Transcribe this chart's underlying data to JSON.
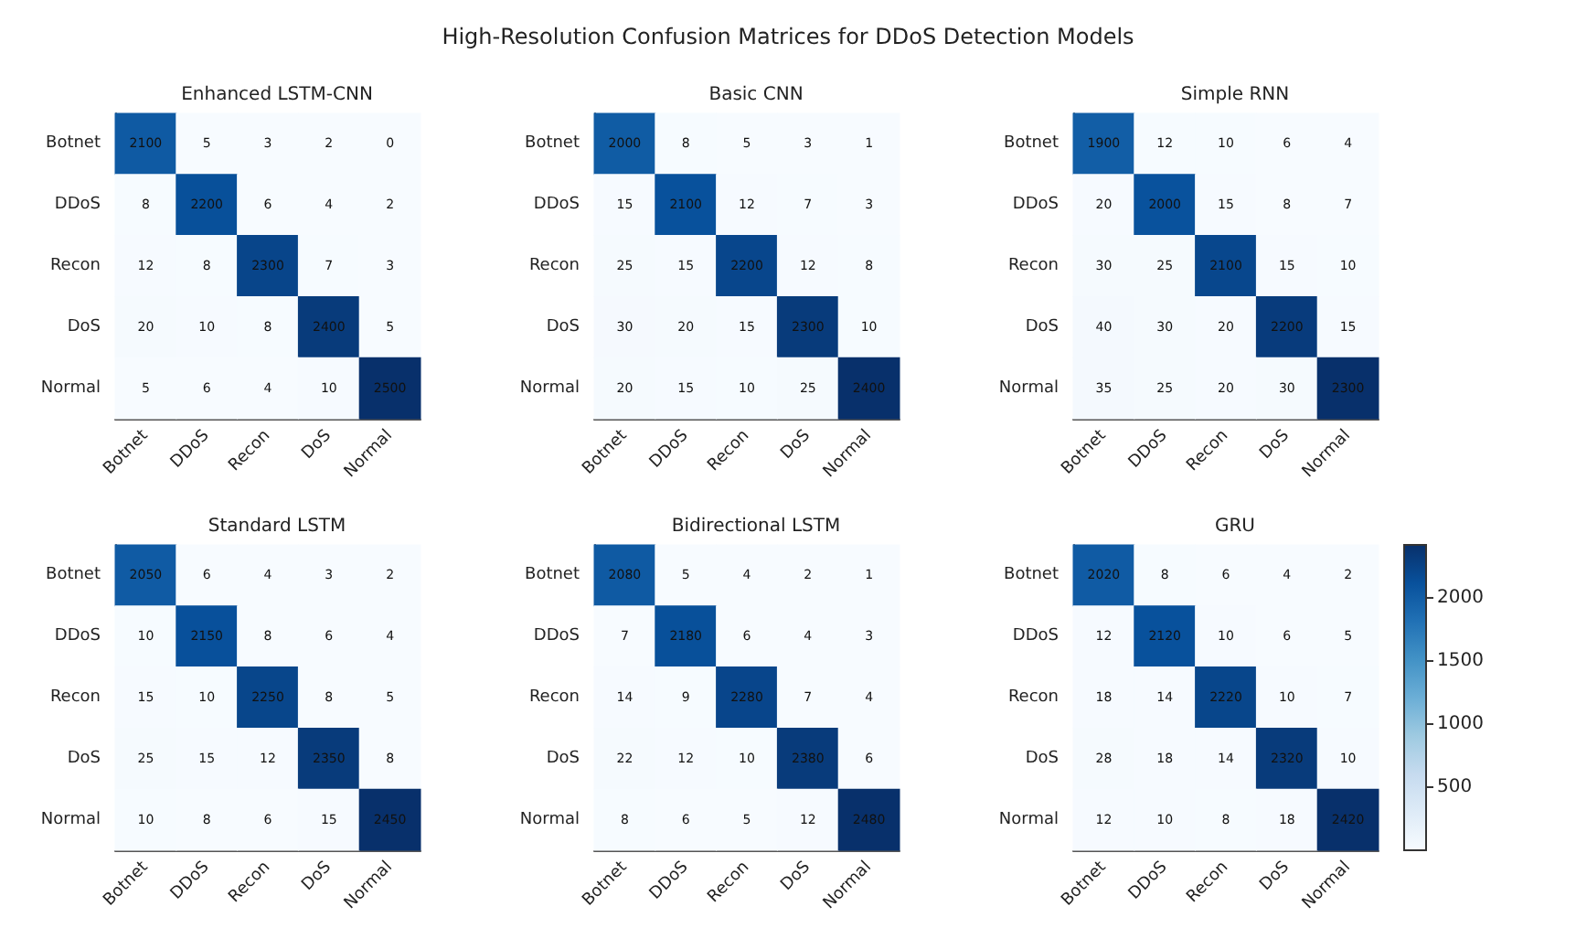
{
  "chart_data": [
    {
      "type": "heatmap",
      "title": "Enhanced LSTM-CNN",
      "annotations": [
        "High-Resolution Confusion Matrices for DDoS Detection Models"
      ],
      "categories": [
        "Botnet",
        "DDoS",
        "Recon",
        "DoS",
        "Normal"
      ],
      "y_categories": [
        "Botnet",
        "DDoS",
        "Recon",
        "DoS",
        "Normal"
      ],
      "data_labels": true,
      "cells": [
        [
          2100,
          5,
          3,
          2,
          0
        ],
        [
          8,
          2200,
          6,
          4,
          2
        ],
        [
          12,
          8,
          2300,
          7,
          3
        ],
        [
          20,
          10,
          8,
          2400,
          5
        ],
        [
          5,
          6,
          4,
          10,
          2500
        ]
      ]
    },
    {
      "type": "heatmap",
      "title": "Basic CNN",
      "categories": [
        "Botnet",
        "DDoS",
        "Recon",
        "DoS",
        "Normal"
      ],
      "y_categories": [
        "Botnet",
        "DDoS",
        "Recon",
        "DoS",
        "Normal"
      ],
      "data_labels": true,
      "cells": [
        [
          2000,
          8,
          5,
          3,
          1
        ],
        [
          15,
          2100,
          12,
          7,
          3
        ],
        [
          25,
          15,
          2200,
          12,
          8
        ],
        [
          30,
          20,
          15,
          2300,
          10
        ],
        [
          20,
          15,
          10,
          25,
          2400
        ]
      ]
    },
    {
      "type": "heatmap",
      "title": "Simple RNN",
      "categories": [
        "Botnet",
        "DDoS",
        "Recon",
        "DoS",
        "Normal"
      ],
      "y_categories": [
        "Botnet",
        "DDoS",
        "Recon",
        "DoS",
        "Normal"
      ],
      "data_labels": true,
      "cells": [
        [
          1900,
          12,
          10,
          6,
          4
        ],
        [
          20,
          2000,
          15,
          8,
          7
        ],
        [
          30,
          25,
          2100,
          15,
          10
        ],
        [
          40,
          30,
          20,
          2200,
          15
        ],
        [
          35,
          25,
          20,
          30,
          2300
        ]
      ]
    },
    {
      "type": "heatmap",
      "title": "Standard LSTM",
      "categories": [
        "Botnet",
        "DDoS",
        "Recon",
        "DoS",
        "Normal"
      ],
      "y_categories": [
        "Botnet",
        "DDoS",
        "Recon",
        "DoS",
        "Normal"
      ],
      "data_labels": true,
      "cells": [
        [
          2050,
          6,
          4,
          3,
          2
        ],
        [
          10,
          2150,
          8,
          6,
          4
        ],
        [
          15,
          10,
          2250,
          8,
          5
        ],
        [
          25,
          15,
          12,
          2350,
          8
        ],
        [
          10,
          8,
          6,
          15,
          2450
        ]
      ]
    },
    {
      "type": "heatmap",
      "title": "Bidirectional LSTM",
      "categories": [
        "Botnet",
        "DDoS",
        "Recon",
        "DoS",
        "Normal"
      ],
      "y_categories": [
        "Botnet",
        "DDoS",
        "Recon",
        "DoS",
        "Normal"
      ],
      "data_labels": true,
      "cells": [
        [
          2080,
          5,
          4,
          2,
          1
        ],
        [
          7,
          2180,
          6,
          4,
          3
        ],
        [
          14,
          9,
          2280,
          7,
          4
        ],
        [
          22,
          12,
          10,
          2380,
          6
        ],
        [
          8,
          6,
          5,
          12,
          2480
        ]
      ]
    },
    {
      "type": "heatmap",
      "title": "GRU",
      "categories": [
        "Botnet",
        "DDoS",
        "Recon",
        "DoS",
        "Normal"
      ],
      "y_categories": [
        "Botnet",
        "DDoS",
        "Recon",
        "DoS",
        "Normal"
      ],
      "data_labels": true,
      "clim": [
        0,
        2420
      ],
      "cticks": [
        500,
        1000,
        1500,
        2000
      ],
      "cells": [
        [
          2020,
          8,
          6,
          4,
          2
        ],
        [
          12,
          2120,
          10,
          6,
          5
        ],
        [
          18,
          14,
          2220,
          10,
          7
        ],
        [
          28,
          18,
          14,
          2320,
          10
        ],
        [
          12,
          10,
          8,
          18,
          2420
        ]
      ]
    }
  ]
}
